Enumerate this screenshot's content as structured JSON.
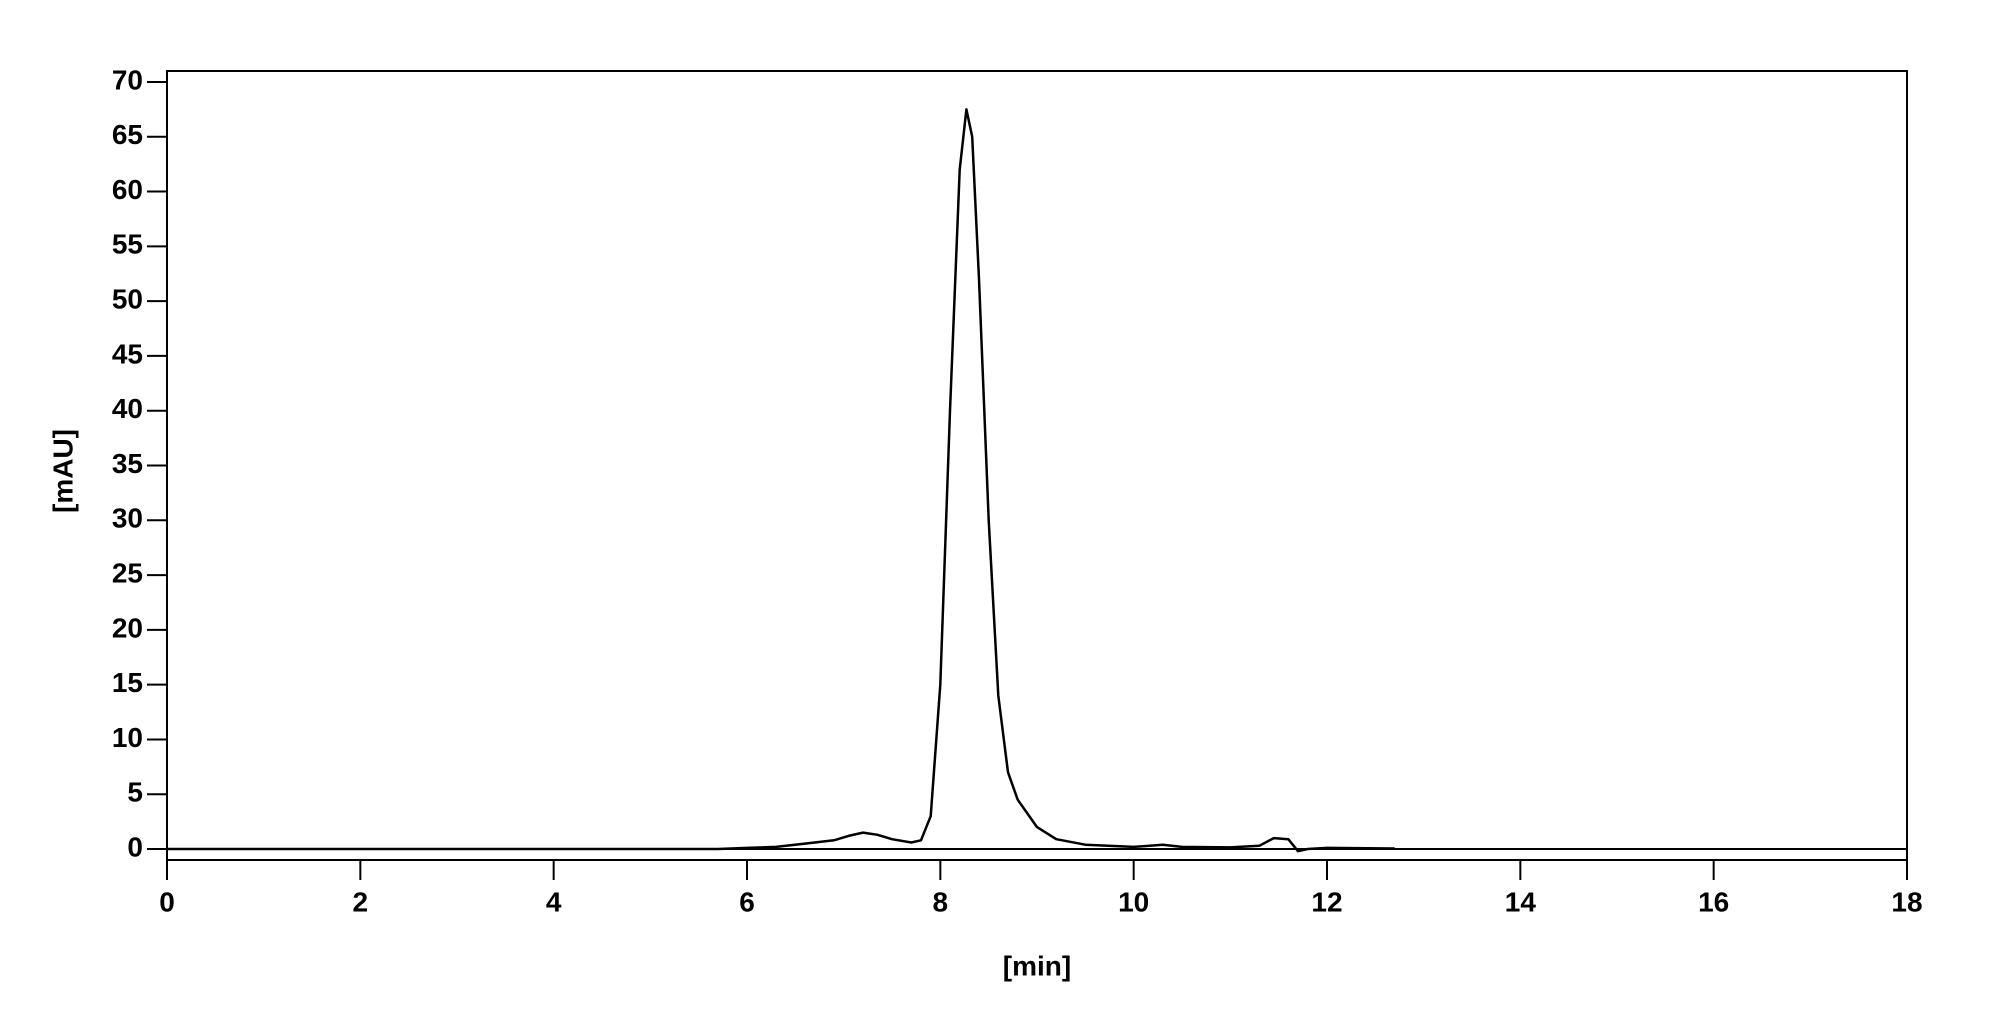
{
  "chart_data": {
    "type": "line",
    "xlabel": "[min]",
    "ylabel": "[mAU]",
    "xlim": [
      0,
      18
    ],
    "ylim": [
      -1,
      71
    ],
    "xticks": [
      0,
      2,
      4,
      6,
      8,
      10,
      12,
      14,
      16,
      18
    ],
    "yticks": [
      0,
      5,
      10,
      15,
      20,
      25,
      30,
      35,
      40,
      45,
      50,
      55,
      60,
      65,
      70
    ],
    "zero_line": true,
    "series": [
      {
        "color": "#000000",
        "x": [
          0,
          5.7,
          6.0,
          6.3,
          6.6,
          6.9,
          7.05,
          7.2,
          7.35,
          7.5,
          7.7,
          7.8,
          7.9,
          8.0,
          8.1,
          8.2,
          8.27,
          8.33,
          8.4,
          8.5,
          8.6,
          8.7,
          8.8,
          9.0,
          9.2,
          9.5,
          10.0,
          10.3,
          10.5,
          11.0,
          11.3,
          11.45,
          11.6,
          11.7,
          11.8,
          12.0,
          12.7
        ],
        "values": [
          0,
          0,
          0.1,
          0.2,
          0.5,
          0.8,
          1.2,
          1.5,
          1.3,
          0.9,
          0.6,
          0.8,
          3,
          15,
          40,
          62,
          67.5,
          65,
          52,
          30,
          14,
          7,
          4.5,
          2,
          0.9,
          0.4,
          0.2,
          0.4,
          0.2,
          0.15,
          0.3,
          1.0,
          0.9,
          -0.2,
          0,
          0.1,
          0.05
        ]
      }
    ]
  }
}
